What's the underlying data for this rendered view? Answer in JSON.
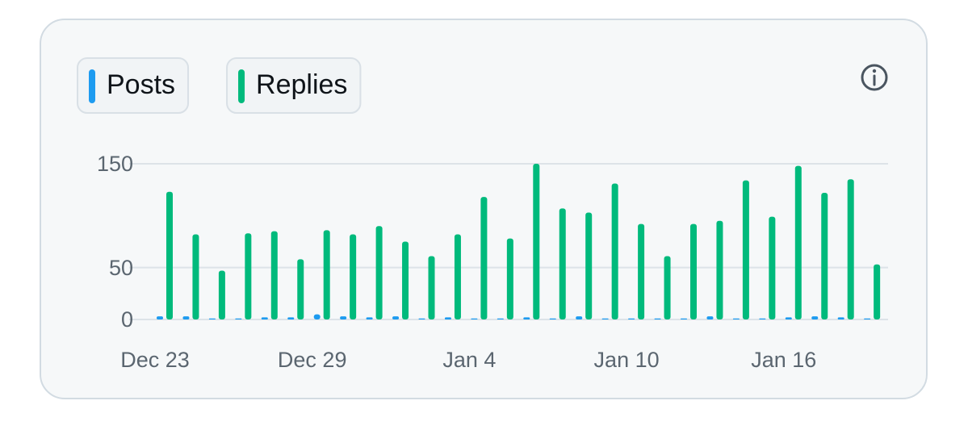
{
  "chart_data": {
    "type": "bar",
    "categories": [
      "Dec 23",
      null,
      null,
      null,
      null,
      null,
      "Dec 29",
      null,
      null,
      null,
      null,
      null,
      "Jan 4",
      null,
      null,
      null,
      null,
      null,
      "Jan 10",
      null,
      null,
      null,
      null,
      null,
      "Jan 16",
      null,
      null,
      null
    ],
    "series": [
      {
        "name": "Posts",
        "color": "#1d9bf0",
        "values": [
          3,
          3,
          1,
          1,
          2,
          2,
          5,
          3,
          2,
          3,
          1,
          2,
          1,
          1,
          2,
          1,
          3,
          1,
          1,
          1,
          1,
          3,
          1,
          1,
          2,
          3,
          2,
          1
        ]
      },
      {
        "name": "Replies",
        "color": "#00ba7c",
        "values": [
          123,
          82,
          47,
          83,
          85,
          58,
          86,
          82,
          90,
          75,
          61,
          82,
          118,
          78,
          150,
          107,
          103,
          131,
          92,
          61,
          92,
          95,
          134,
          99,
          148,
          122,
          135,
          53
        ]
      }
    ],
    "ylim": [
      0,
      150
    ],
    "yticks": [
      0,
      50,
      150
    ],
    "grid": true
  }
}
